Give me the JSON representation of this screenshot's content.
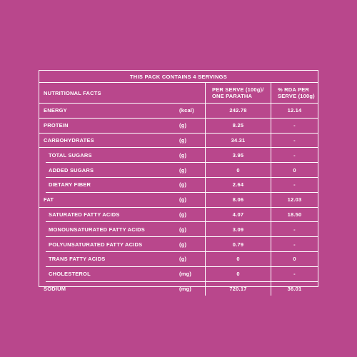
{
  "caption": "THIS PACK CONTAINS 4 SERVINGS",
  "header": {
    "name": "NUTRITIONAL FACTS",
    "per_serve_line1": "PER SERVE (100g)/",
    "per_serve_line2": "ONE PARATHA",
    "rda_line1": "% RDA PER",
    "rda_line2": "SERVE (100g)"
  },
  "rows": [
    {
      "name": "ENERGY",
      "unit": "(kcal)",
      "value": "242.78",
      "rda": "12.14"
    },
    {
      "name": "PROTEIN",
      "unit": "(g)",
      "value": "8.25",
      "rda": "-"
    },
    {
      "name": "CARBOHYDRATES",
      "unit": "(g)",
      "value": "34.31",
      "rda": "-"
    },
    {
      "name": "TOTAL SUGARS",
      "unit": "(g)",
      "value": "3.95",
      "rda": "-"
    },
    {
      "name": "ADDED SUGARS",
      "unit": "(g)",
      "value": "0",
      "rda": "0"
    },
    {
      "name": "DIETARY FIBER",
      "unit": "(g)",
      "value": "2.64",
      "rda": "-"
    },
    {
      "name": "FAT",
      "unit": "(g)",
      "value": "8.06",
      "rda": "12.03"
    },
    {
      "name": "SATURATED FATTY ACIDS",
      "unit": "(g)",
      "value": "4.07",
      "rda": "18.50"
    },
    {
      "name": "MONOUNSATURATED FATTY ACIDS",
      "unit": "(g)",
      "value": "3.09",
      "rda": "-"
    },
    {
      "name": "POLYUNSATURATED FATTY ACIDS",
      "unit": "(g)",
      "value": "0.79",
      "rda": "-"
    },
    {
      "name": "TRANS FATTY ACIDS",
      "unit": "(g)",
      "value": "0",
      "rda": "0"
    },
    {
      "name": "CHOLESTEROL",
      "unit": "(mg)",
      "value": "0",
      "rda": "-"
    },
    {
      "name": "SODIUM",
      "unit": "(mg)",
      "value": "720.17",
      "rda": "36.01"
    }
  ],
  "colors": {
    "background": "#b9478c",
    "foreground": "#ffffff"
  }
}
